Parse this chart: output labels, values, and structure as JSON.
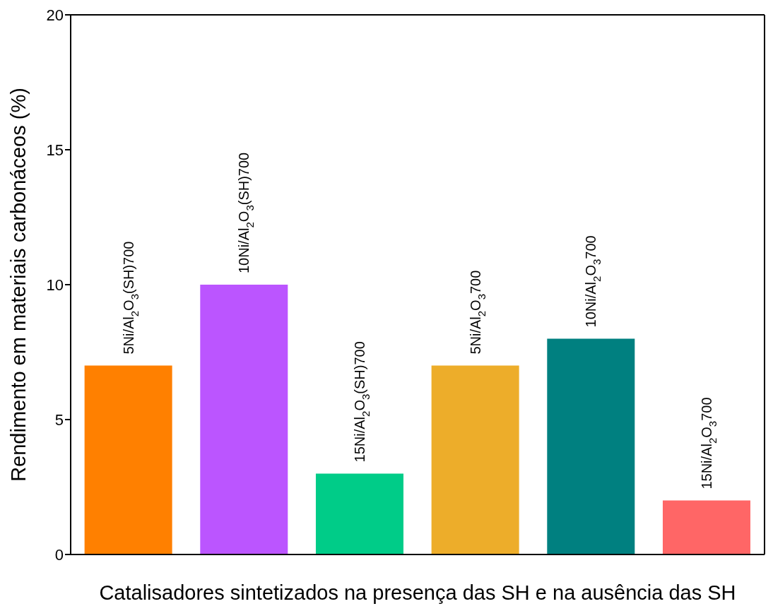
{
  "chart_data": {
    "type": "bar",
    "xlabel": "Catalisadores sintetizados na presença das SH e na ausência das SH",
    "ylabel": "Rendimento em materiais carbonáceos (%)",
    "categories": [
      "5Ni/Al$_{2}$O$_{3}$(SH)700",
      "10Ni/Al$_{2}$O$_{3}$(SH)700",
      "15Ni/Al$_{2}$O$_{3}$(SH)700",
      "5Ni/Al$_{2}$O$_{3}$700",
      "10Ni/Al$_{2}$O$_{3}$700",
      "15Ni/Al$_{2}$O$_{3}$700"
    ],
    "values": [
      7,
      10,
      3,
      7,
      8,
      2
    ],
    "colors": [
      "#ff8000",
      "#bb55ff",
      "#00cc88",
      "#edad2a",
      "#008080",
      "#ff6666"
    ],
    "ylim": [
      0,
      20
    ],
    "yticks": [
      0,
      5,
      10,
      15,
      20
    ],
    "tick_labels": "y",
    "grid": false
  }
}
